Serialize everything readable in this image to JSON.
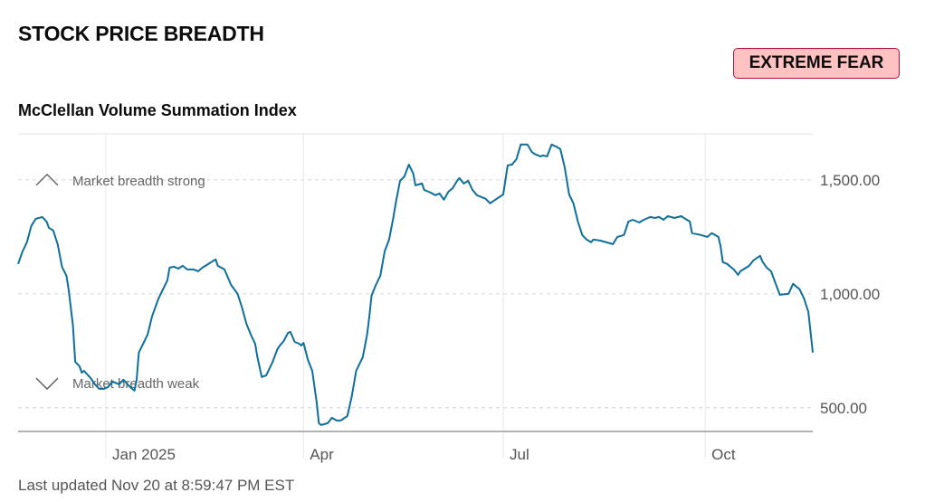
{
  "header": {
    "title": "STOCK PRICE BREADTH",
    "badge": "EXTREME FEAR"
  },
  "chart_data": {
    "type": "line",
    "title": "McClellan Volume Summation Index",
    "xlabel": "",
    "ylabel": "",
    "x_unit": "days since Jan 1, 2025",
    "xlim": [
      -40,
      322
    ],
    "ylim": [
      396,
      1702
    ],
    "yticks": [
      {
        "value": 500,
        "label": "500.00"
      },
      {
        "value": 1000,
        "label": "1,000.00"
      },
      {
        "value": 1500,
        "label": "1,500.00"
      }
    ],
    "xticks": [
      {
        "value": 0,
        "label": "Jan 2025"
      },
      {
        "value": 90,
        "label": "Apr"
      },
      {
        "value": 181,
        "label": "Jul"
      },
      {
        "value": 273,
        "label": "Oct"
      }
    ],
    "annotations": [
      {
        "label": "Market breadth strong",
        "value": 1500,
        "icon": "chevron-up-icon"
      },
      {
        "label": "Market breadth weak",
        "value": 610,
        "icon": "chevron-down-icon"
      }
    ],
    "grid": true,
    "line_color": "#0e6f9c",
    "series": [
      {
        "name": "McClellan Volume Summation Index",
        "x": [
          -40,
          -38,
          -36,
          -34,
          -32,
          -29,
          -27,
          -26,
          -24,
          -22,
          -20,
          -18,
          -17,
          -15,
          -14,
          -12,
          -11,
          -10,
          -7,
          -5,
          -3,
          -1,
          1,
          3,
          6,
          8,
          11,
          13,
          14,
          15,
          17,
          19,
          21,
          24,
          26,
          28,
          29,
          31,
          33,
          35,
          37,
          40,
          42,
          44,
          46,
          48,
          50,
          51,
          54,
          57,
          60,
          62,
          64,
          66,
          68,
          69,
          71,
          73,
          74,
          76,
          78,
          79,
          81,
          83,
          84,
          86,
          88,
          89,
          90,
          92,
          94,
          96,
          97,
          98,
          101,
          103,
          105,
          107,
          110,
          112,
          114,
          117,
          119,
          120,
          121,
          123,
          125,
          127,
          129,
          131,
          132,
          134,
          136,
          138,
          140,
          141,
          144,
          145,
          148,
          150,
          152,
          154,
          156,
          158,
          160,
          161,
          163,
          165,
          167,
          169,
          171,
          173,
          175,
          178,
          181,
          183,
          185,
          187,
          189,
          192,
          194,
          195,
          198,
          199,
          201,
          203,
          205,
          207,
          209,
          211,
          213,
          215,
          217,
          219,
          221,
          222,
          225,
          228,
          231,
          233,
          236,
          238,
          240,
          243,
          245,
          248,
          250,
          252,
          254,
          256,
          259,
          262,
          264,
          266,
          267,
          271,
          274,
          276,
          279,
          280,
          281,
          283,
          286,
          288,
          289,
          293,
          295,
          298,
          299,
          301,
          303,
          305,
          307,
          311,
          313,
          316,
          318,
          320,
          322
        ],
        "y": [
          1131,
          1186,
          1226,
          1298,
          1329,
          1337,
          1317,
          1290,
          1278,
          1218,
          1119,
          1079,
          1020,
          861,
          702,
          682,
          654,
          662,
          631,
          603,
          583,
          583,
          591,
          615,
          603,
          623,
          591,
          575,
          623,
          742,
          781,
          821,
          901,
          980,
          1020,
          1059,
          1115,
          1119,
          1111,
          1123,
          1107,
          1107,
          1099,
          1115,
          1127,
          1139,
          1151,
          1123,
          1107,
          1039,
          1000,
          940,
          869,
          821,
          781,
          722,
          635,
          642,
          662,
          702,
          754,
          770,
          793,
          829,
          833,
          789,
          781,
          773,
          785,
          710,
          662,
          523,
          432,
          424,
          432,
          456,
          444,
          444,
          464,
          551,
          662,
          722,
          821,
          901,
          992,
          1039,
          1079,
          1186,
          1238,
          1337,
          1397,
          1496,
          1516,
          1567,
          1528,
          1476,
          1484,
          1456,
          1444,
          1433,
          1440,
          1413,
          1448,
          1464,
          1496,
          1508,
          1484,
          1496,
          1456,
          1433,
          1425,
          1417,
          1397,
          1417,
          1436,
          1564,
          1567,
          1591,
          1655,
          1655,
          1623,
          1615,
          1603,
          1607,
          1603,
          1655,
          1647,
          1635,
          1556,
          1436,
          1397,
          1317,
          1258,
          1238,
          1226,
          1238,
          1234,
          1226,
          1218,
          1250,
          1258,
          1317,
          1325,
          1313,
          1325,
          1337,
          1333,
          1337,
          1325,
          1341,
          1333,
          1341,
          1329,
          1317,
          1266,
          1258,
          1250,
          1266,
          1250,
          1210,
          1139,
          1131,
          1107,
          1083,
          1099,
          1123,
          1147,
          1167,
          1143,
          1115,
          1099,
          1047,
          996,
          1000,
          1044,
          1020,
          980,
          921,
          742
        ]
      }
    ]
  },
  "footer": {
    "updated": "Last updated Nov 20 at 8:59:47 PM EST"
  }
}
